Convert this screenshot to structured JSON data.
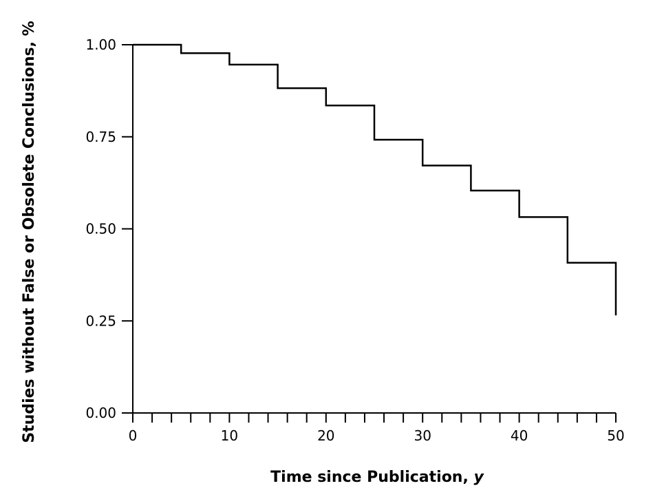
{
  "chart_data": {
    "type": "line",
    "step": true,
    "title": "",
    "xlabel_main": "Time since Publication, ",
    "xlabel_unit": "y",
    "ylabel": "Studies without False or Obsolete Conclusions, %",
    "xlim": [
      0,
      50
    ],
    "ylim": [
      0,
      1
    ],
    "x_ticks": [
      0,
      10,
      20,
      30,
      40,
      50
    ],
    "x_minor_step": 2,
    "y_ticks": [
      "0.00",
      "0.25",
      "0.50",
      "0.75",
      "1.00"
    ],
    "grid": false,
    "legend": "none",
    "line_color": "#000000",
    "series": [
      {
        "x": [
          0,
          5,
          10,
          15,
          20,
          25,
          30,
          35,
          40,
          45,
          50
        ],
        "y": [
          1.0,
          0.977,
          0.946,
          0.882,
          0.835,
          0.742,
          0.672,
          0.604,
          0.532,
          0.408,
          0.265
        ]
      }
    ]
  }
}
